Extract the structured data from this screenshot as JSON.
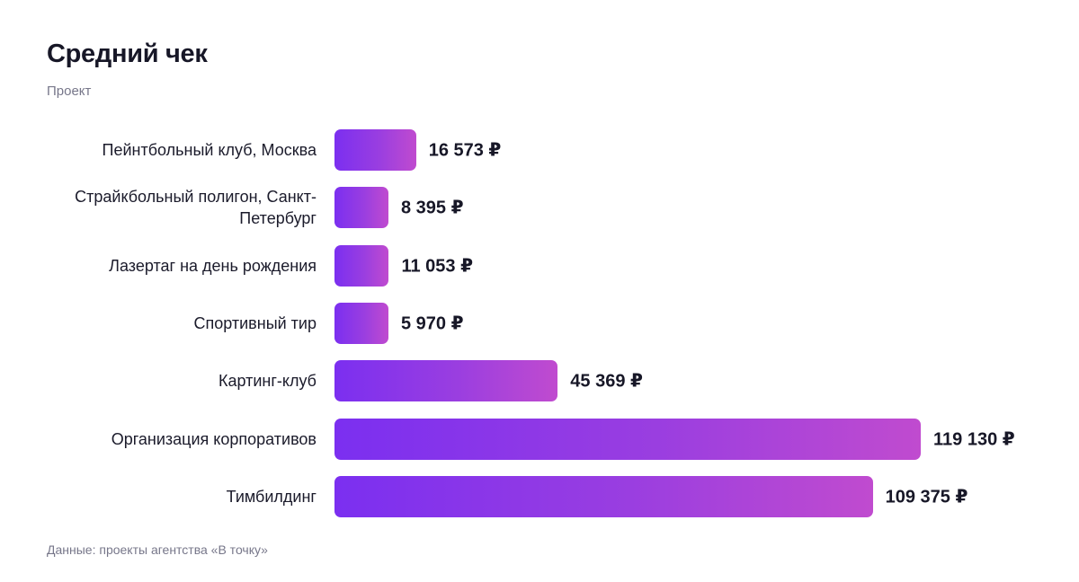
{
  "chart_data": {
    "type": "bar",
    "orientation": "horizontal",
    "title": "Средний чек",
    "subtitle": "Проект",
    "currency": "₽",
    "categories": [
      "Пейнтбольный клуб, Москва",
      "Страйкбольный полигон, Санкт-Петербург",
      "Лазертаг на день рождения",
      "Спортивный тир",
      "Картинг-клуб",
      "Организация корпоративов",
      "Тимбилдинг"
    ],
    "values": [
      16573,
      8395,
      11053,
      5970,
      45369,
      119130,
      109375
    ],
    "value_labels": [
      "16 573 ₽",
      "8 395 ₽",
      "11 053 ₽",
      "5 970 ₽",
      "45 369 ₽",
      "119 130 ₽",
      "109 375 ₽"
    ],
    "xlim": [
      0,
      120000
    ],
    "colors": {
      "bar_start": "#7b2ff0",
      "bar_end": "#c04bcf"
    },
    "grid": false,
    "source": "Данные: проекты агентства «В точку»"
  }
}
